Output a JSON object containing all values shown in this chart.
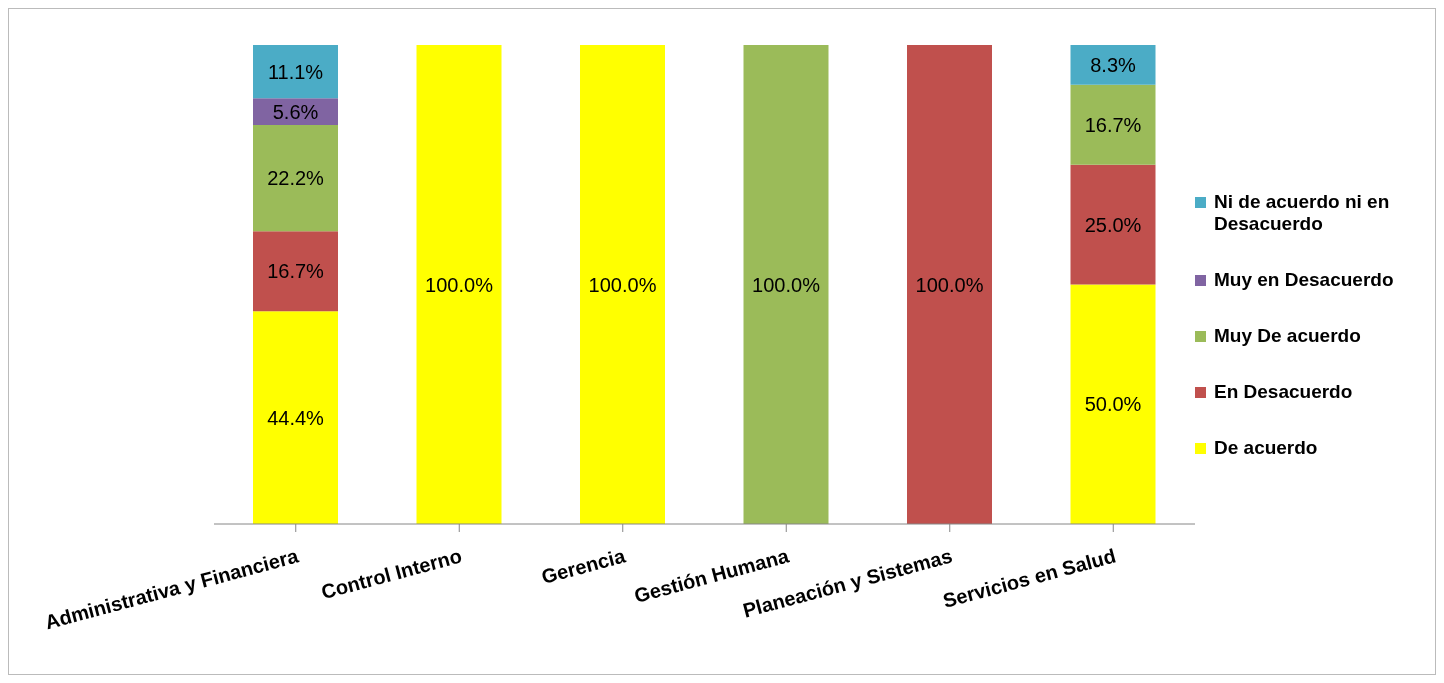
{
  "chart_data": {
    "type": "bar",
    "stacked": true,
    "categories": [
      "Administrativa y Financiera",
      "Control Interno",
      "Gerencia",
      "Gestión Humana",
      "Planeación y Sistemas",
      "Servicios en Salud"
    ],
    "ylim": [
      0,
      100
    ],
    "legend": "right",
    "grid": false,
    "series": [
      {
        "name": "De acuerdo",
        "color": "#ffff00",
        "values": [
          44.4,
          100,
          100,
          null,
          null,
          50.0
        ],
        "value_labels": [
          "44.4%",
          "100.0%",
          "100.0%",
          null,
          null,
          "50.0%"
        ]
      },
      {
        "name": "En Desacuerdo",
        "color": "#c0504d",
        "values": [
          16.7,
          null,
          null,
          null,
          100,
          25.0
        ],
        "value_labels": [
          "16.7%",
          null,
          null,
          null,
          "100.0%",
          "25.0%"
        ]
      },
      {
        "name": "Muy De acuerdo",
        "color": "#9bbb59",
        "values": [
          22.2,
          null,
          null,
          100,
          null,
          16.7
        ],
        "value_labels": [
          "22.2%",
          null,
          null,
          "100.0%",
          null,
          "16.7%"
        ]
      },
      {
        "name": "Muy en Desacuerdo",
        "color": "#8064a2",
        "values": [
          5.6,
          null,
          null,
          null,
          null,
          null
        ],
        "value_labels": [
          "5.6%",
          null,
          null,
          null,
          null,
          null
        ]
      },
      {
        "name": "Ni de acuerdo ni en Desacuerdo",
        "color": "#4bacc6",
        "values": [
          11.1,
          null,
          null,
          null,
          null,
          8.3
        ],
        "value_labels": [
          "11.1%",
          null,
          null,
          null,
          null,
          "8.3%"
        ]
      }
    ]
  }
}
